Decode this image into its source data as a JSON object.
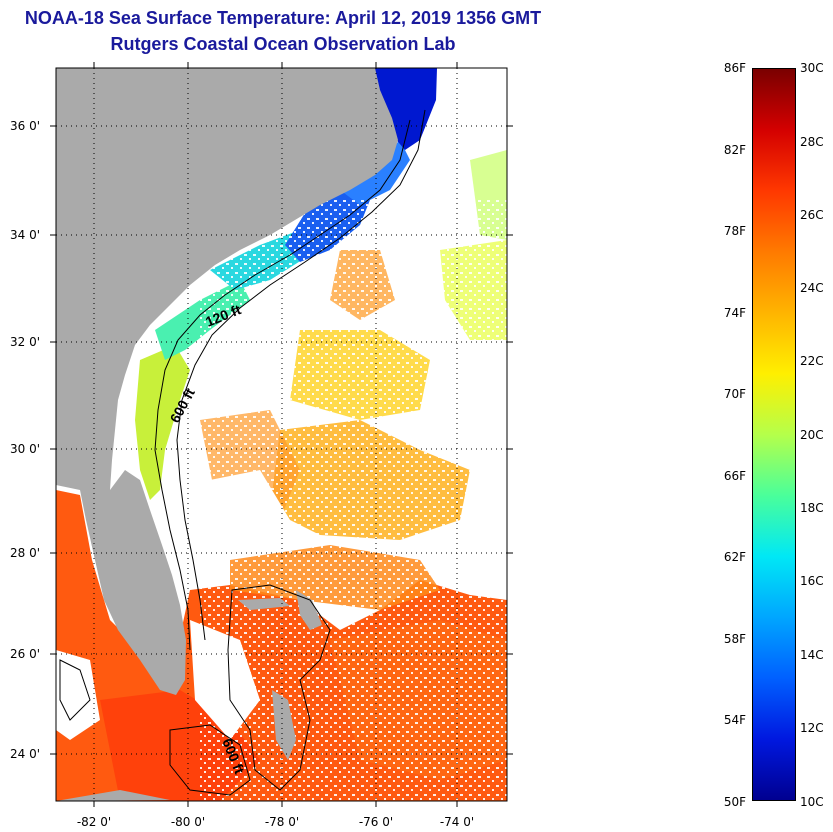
{
  "header": {
    "title": "NOAA-18 Sea Surface Temperature:  April 12, 2019 1356 GMT",
    "subtitle": "Rutgers Coastal Ocean Observation Lab"
  },
  "map": {
    "lat_labels": [
      "36 0'",
      "34 0'",
      "32 0'",
      "30 0'",
      "28 0'",
      "26 0'",
      "24 0'"
    ],
    "lon_labels": [
      "-82 0'",
      "-80 0'",
      "-78 0'",
      "-76 0'",
      "-74 0'"
    ],
    "contours": {
      "label_120": "120 ft",
      "label_600_north": "600 ft",
      "label_600_south": "600 ft"
    },
    "colors": {
      "land": "#aaaaaa",
      "no_data": "#ffffff"
    }
  },
  "colorbar": {
    "fahrenheit": [
      "86F",
      "82F",
      "78F",
      "74F",
      "70F",
      "66F",
      "62F",
      "58F",
      "54F",
      "50F"
    ],
    "celsius": [
      "30C",
      "28C",
      "26C",
      "24C",
      "22C",
      "20C",
      "18C",
      "16C",
      "14C",
      "12C",
      "10C"
    ],
    "gradient": [
      "#7a0000",
      "#d40000",
      "#ff3800",
      "#ff7a00",
      "#ffb400",
      "#ffef00",
      "#b5ff4a",
      "#4aff9a",
      "#00e8f5",
      "#00a6ff",
      "#0060ff",
      "#0018e0",
      "#000090"
    ]
  }
}
